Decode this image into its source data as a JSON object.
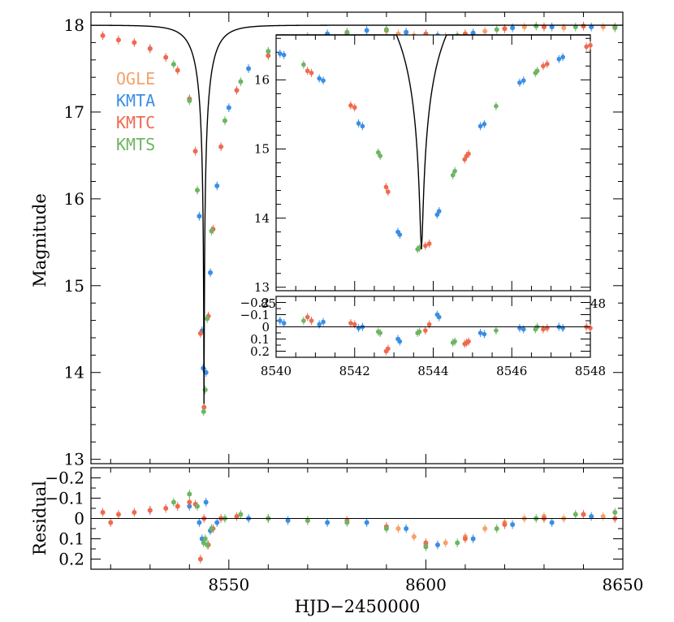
{
  "chart_data": {
    "type": "scatter",
    "title": "",
    "xlabel": "HJD−2450000",
    "ylabel_top": "Magnitude",
    "ylabel_bottom": "Residual",
    "main_panel": {
      "xlim": [
        8515,
        8650
      ],
      "ylim": [
        18.15,
        12.95
      ],
      "y_inverted": true,
      "yticks": [
        "13",
        "14",
        "15",
        "16",
        "17",
        "18"
      ],
      "legend_position": "top-left"
    },
    "residual_panel": {
      "xlim": [
        8515,
        8650
      ],
      "ylim": [
        -0.25,
        0.25
      ],
      "xticks": [
        "8550",
        "8600",
        "8650"
      ],
      "yticks": [
        "0.2",
        "0.1",
        "0",
        "−0.1",
        "−0.2"
      ]
    },
    "inset_panel": {
      "xlim": [
        8540,
        8548
      ],
      "ylim": [
        16.65,
        12.95
      ],
      "xticks": [
        "8540",
        "8542",
        "8544",
        "8546",
        "8548"
      ],
      "yticks": [
        "13",
        "14",
        "15",
        "16"
      ]
    },
    "inset_residual_panel": {
      "xlim": [
        8540,
        8548
      ],
      "ylim": [
        -0.25,
        0.25
      ],
      "yticks": [
        "0.2",
        "0.1",
        "0",
        "−0.1",
        "−0.2"
      ]
    },
    "model": {
      "t0": 8543.7,
      "u0": 0.005,
      "tE": 5.9,
      "peak_mag": 13.55,
      "baseline_mag": 18.0
    },
    "series": [
      {
        "name": "OGLE",
        "color": "#F4A26B",
        "points": [
          [
            8593,
            17.9
          ],
          [
            8597,
            17.88
          ],
          [
            8600,
            17.87
          ],
          [
            8605,
            17.87
          ],
          [
            8610,
            17.9
          ],
          [
            8615,
            17.93
          ],
          [
            8620,
            17.96
          ],
          [
            8625,
            17.98
          ],
          [
            8630,
            17.98
          ],
          [
            8635,
            17.97
          ],
          [
            8640,
            17.99
          ],
          [
            8645,
            17.98
          ]
        ],
        "residual": [
          [
            8593,
            0.05
          ],
          [
            8597,
            0.09
          ],
          [
            8600,
            0.13
          ],
          [
            8605,
            0.12
          ],
          [
            8610,
            0.09
          ],
          [
            8615,
            0.05
          ],
          [
            8620,
            0.02
          ],
          [
            8625,
            0.0
          ],
          [
            8630,
            -0.01
          ],
          [
            8635,
            0.0
          ],
          [
            8640,
            -0.02
          ],
          [
            8645,
            -0.01
          ]
        ],
        "inset": [],
        "inset_residual": []
      },
      {
        "name": "KMTA",
        "color": "#3A8EE6",
        "points": [
          [
            8530,
            17.73
          ],
          [
            8540,
            17.15
          ],
          [
            8542.5,
            15.8
          ],
          [
            8543.2,
            14.48
          ],
          [
            8543.5,
            14.05
          ],
          [
            8544.2,
            14.0
          ],
          [
            8545.3,
            15.15
          ],
          [
            8547,
            16.15
          ],
          [
            8550,
            17.05
          ],
          [
            8555,
            17.5
          ],
          [
            8565,
            17.8
          ],
          [
            8575,
            17.9
          ],
          [
            8585,
            17.94
          ],
          [
            8595,
            17.92
          ],
          [
            8603,
            17.88
          ],
          [
            8612,
            17.91
          ],
          [
            8622,
            17.97
          ],
          [
            8632,
            17.98
          ],
          [
            8642,
            17.98
          ]
        ],
        "residual": [
          [
            8530,
            -0.04
          ],
          [
            8540,
            -0.06
          ],
          [
            8542.5,
            0.02
          ],
          [
            8543.2,
            0.1
          ],
          [
            8544.2,
            -0.08
          ],
          [
            8545.3,
            0.06
          ],
          [
            8547,
            0.02
          ],
          [
            8555,
            0.0
          ],
          [
            8565,
            0.01
          ],
          [
            8575,
            0.02
          ],
          [
            8585,
            0.02
          ],
          [
            8595,
            0.05
          ],
          [
            8603,
            0.13
          ],
          [
            8612,
            0.1
          ],
          [
            8622,
            0.03
          ],
          [
            8632,
            0.02
          ],
          [
            8642,
            -0.01
          ]
        ],
        "inset": [
          [
            8540.1,
            16.38
          ],
          [
            8540.2,
            16.36
          ],
          [
            8541.1,
            16.02
          ],
          [
            8541.2,
            15.99
          ],
          [
            8542.1,
            15.37
          ],
          [
            8542.2,
            15.33
          ],
          [
            8543.1,
            13.8
          ],
          [
            8543.15,
            13.76
          ],
          [
            8544.1,
            14.05
          ],
          [
            8544.15,
            14.1
          ],
          [
            8545.2,
            15.33
          ],
          [
            8545.3,
            15.36
          ],
          [
            8546.2,
            15.96
          ],
          [
            8546.3,
            15.99
          ],
          [
            8547.2,
            16.3
          ],
          [
            8547.3,
            16.33
          ]
        ],
        "inset_residual": [
          [
            8540.1,
            -0.05
          ],
          [
            8540.2,
            -0.03
          ],
          [
            8541.1,
            -0.02
          ],
          [
            8541.2,
            -0.04
          ],
          [
            8542.1,
            0.01
          ],
          [
            8542.2,
            0.0
          ],
          [
            8543.1,
            0.1
          ],
          [
            8543.15,
            0.12
          ],
          [
            8544.1,
            -0.1
          ],
          [
            8544.15,
            -0.08
          ],
          [
            8545.2,
            0.05
          ],
          [
            8545.3,
            0.06
          ],
          [
            8546.2,
            0.01
          ],
          [
            8546.3,
            0.02
          ],
          [
            8547.2,
            0.0
          ],
          [
            8547.3,
            0.01
          ]
        ]
      },
      {
        "name": "KMTC",
        "color": "#EE6A4F",
        "points": [
          [
            8518,
            17.88
          ],
          [
            8522,
            17.83
          ],
          [
            8526,
            17.8
          ],
          [
            8530,
            17.73
          ],
          [
            8534,
            17.63
          ],
          [
            8537,
            17.48
          ],
          [
            8540,
            17.15
          ],
          [
            8541.5,
            16.55
          ],
          [
            8542.8,
            14.45
          ],
          [
            8543.7,
            13.6
          ],
          [
            8544.8,
            14.65
          ],
          [
            8546,
            15.65
          ],
          [
            8548,
            16.6
          ],
          [
            8552,
            17.25
          ],
          [
            8560,
            17.65
          ],
          [
            8570,
            17.85
          ],
          [
            8580,
            17.91
          ],
          [
            8590,
            17.94
          ],
          [
            8600,
            17.9
          ],
          [
            8610,
            17.9
          ],
          [
            8620,
            17.96
          ],
          [
            8630,
            17.98
          ],
          [
            8640,
            17.99
          ],
          [
            8648,
            17.98
          ]
        ],
        "residual": [
          [
            8518,
            -0.03
          ],
          [
            8520,
            0.02
          ],
          [
            8522,
            -0.02
          ],
          [
            8526,
            -0.03
          ],
          [
            8530,
            -0.04
          ],
          [
            8534,
            -0.05
          ],
          [
            8537,
            -0.06
          ],
          [
            8540,
            -0.08
          ],
          [
            8541.5,
            -0.07
          ],
          [
            8542.8,
            0.2
          ],
          [
            8543.7,
            0.0
          ],
          [
            8544.8,
            0.13
          ],
          [
            8546,
            0.05
          ],
          [
            8548,
            0.0
          ],
          [
            8552,
            -0.01
          ],
          [
            8560,
            0.0
          ],
          [
            8570,
            0.01
          ],
          [
            8580,
            0.01
          ],
          [
            8590,
            0.04
          ],
          [
            8600,
            0.12
          ],
          [
            8610,
            0.1
          ],
          [
            8620,
            0.03
          ],
          [
            8630,
            0.0
          ],
          [
            8640,
            -0.02
          ],
          [
            8648,
            0.0
          ]
        ],
        "inset": [
          [
            8540.8,
            16.13
          ],
          [
            8540.9,
            16.1
          ],
          [
            8541.9,
            15.63
          ],
          [
            8542.0,
            15.6
          ],
          [
            8542.8,
            14.45
          ],
          [
            8542.85,
            14.38
          ],
          [
            8543.8,
            13.6
          ],
          [
            8543.9,
            13.63
          ],
          [
            8544.8,
            14.85
          ],
          [
            8544.85,
            14.9
          ],
          [
            8544.9,
            14.93
          ],
          [
            8546.8,
            16.2
          ],
          [
            8546.9,
            16.23
          ],
          [
            8547.9,
            16.48
          ],
          [
            8548.0,
            16.5
          ]
        ],
        "inset_residual": [
          [
            8540.8,
            -0.08
          ],
          [
            8540.9,
            -0.05
          ],
          [
            8541.9,
            -0.03
          ],
          [
            8542.0,
            -0.02
          ],
          [
            8542.8,
            0.2
          ],
          [
            8542.85,
            0.18
          ],
          [
            8543.8,
            0.03
          ],
          [
            8543.9,
            -0.02
          ],
          [
            8544.8,
            0.14
          ],
          [
            8544.85,
            0.13
          ],
          [
            8544.9,
            0.12
          ],
          [
            8546.8,
            0.02
          ],
          [
            8546.9,
            0.01
          ],
          [
            8547.9,
            0.0
          ],
          [
            8548.0,
            0.01
          ]
        ]
      },
      {
        "name": "KMTS",
        "color": "#6DB562",
        "points": [
          [
            8536,
            17.55
          ],
          [
            8540,
            17.13
          ],
          [
            8542,
            16.1
          ],
          [
            8543.6,
            13.55
          ],
          [
            8544,
            13.8
          ],
          [
            8544.5,
            14.62
          ],
          [
            8545.6,
            15.63
          ],
          [
            8549,
            16.9
          ],
          [
            8553,
            17.35
          ],
          [
            8560,
            17.7
          ],
          [
            8570,
            17.87
          ],
          [
            8580,
            17.92
          ],
          [
            8590,
            17.95
          ],
          [
            8600,
            17.86
          ],
          [
            8608,
            17.88
          ],
          [
            8618,
            17.95
          ],
          [
            8628,
            17.99
          ],
          [
            8638,
            17.98
          ],
          [
            8648,
            17.97
          ]
        ],
        "residual": [
          [
            8536,
            -0.08
          ],
          [
            8540,
            -0.12
          ],
          [
            8542,
            -0.06
          ],
          [
            8543.6,
            0.12
          ],
          [
            8544,
            0.1
          ],
          [
            8544.5,
            0.13
          ],
          [
            8545.6,
            0.05
          ],
          [
            8549,
            0.0
          ],
          [
            8553,
            -0.02
          ],
          [
            8560,
            0.0
          ],
          [
            8570,
            0.01
          ],
          [
            8580,
            0.02
          ],
          [
            8590,
            0.05
          ],
          [
            8600,
            0.14
          ],
          [
            8608,
            0.12
          ],
          [
            8618,
            0.05
          ],
          [
            8628,
            0.0
          ],
          [
            8638,
            -0.02
          ],
          [
            8648,
            -0.03
          ]
        ],
        "inset": [
          [
            8540.7,
            16.22
          ],
          [
            8542.6,
            14.95
          ],
          [
            8542.65,
            14.9
          ],
          [
            8543.6,
            13.55
          ],
          [
            8543.65,
            13.57
          ],
          [
            8544.5,
            14.62
          ],
          [
            8544.55,
            14.68
          ],
          [
            8545.6,
            15.62
          ],
          [
            8546.6,
            16.1
          ],
          [
            8546.65,
            16.13
          ]
        ],
        "inset_residual": [
          [
            8540.7,
            -0.05
          ],
          [
            8542.6,
            0.04
          ],
          [
            8542.65,
            0.05
          ],
          [
            8543.6,
            0.05
          ],
          [
            8543.65,
            0.04
          ],
          [
            8544.5,
            0.13
          ],
          [
            8544.55,
            0.12
          ],
          [
            8545.6,
            0.03
          ],
          [
            8546.6,
            0.02
          ],
          [
            8546.65,
            0.0
          ]
        ]
      }
    ]
  }
}
